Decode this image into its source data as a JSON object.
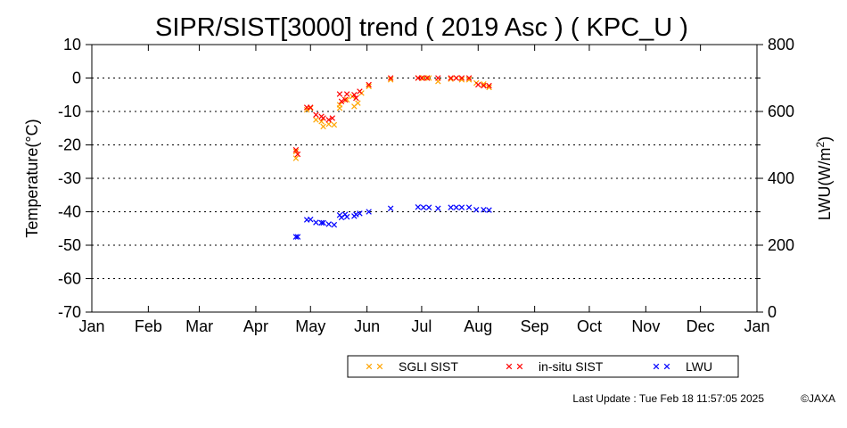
{
  "chart_data": {
    "type": "scatter",
    "title": "SIPR/SIST[3000] trend ( 2019 Asc ) ( KPC_U )",
    "ylabel_left": "Temperature(°C)",
    "ylabel_right_main": "LWU(W/m",
    "ylabel_right_sup": "2",
    "ylabel_right_end": ")",
    "ylim_left": [
      -70,
      10
    ],
    "ylim_right": [
      0,
      800
    ],
    "xlim": [
      1,
      366
    ],
    "yticks_left": [
      10,
      0,
      -10,
      -20,
      -30,
      -40,
      -50,
      -60,
      -70
    ],
    "yticks_right": [
      800,
      600,
      400,
      200,
      0
    ],
    "yticks_right_minor": [
      700,
      500,
      300,
      100
    ],
    "xticks": [
      {
        "label": "Jan",
        "day": 1
      },
      {
        "label": "Feb",
        "day": 32
      },
      {
        "label": "Mar",
        "day": 60
      },
      {
        "label": "Apr",
        "day": 91
      },
      {
        "label": "May",
        "day": 121
      },
      {
        "label": "Jun",
        "day": 152
      },
      {
        "label": "Jul",
        "day": 182
      },
      {
        "label": "Aug",
        "day": 213
      },
      {
        "label": "Sep",
        "day": 244
      },
      {
        "label": "Oct",
        "day": 274
      },
      {
        "label": "Nov",
        "day": 305
      },
      {
        "label": "Dec",
        "day": 335
      },
      {
        "label": "Jan",
        "day": 366
      }
    ],
    "grid": "dotted horizontal",
    "legend_position": "bottom",
    "series": [
      {
        "name": "SGLI SIST",
        "color": "#ffa500",
        "axis": "left",
        "points": [
          [
            113,
            -22.0
          ],
          [
            113,
            -24.0
          ],
          [
            119,
            -9.5
          ],
          [
            121,
            -9.0
          ],
          [
            124,
            -12.5
          ],
          [
            127,
            -13.0
          ],
          [
            128,
            -14.5
          ],
          [
            131,
            -13.8
          ],
          [
            134,
            -14.0
          ],
          [
            137,
            -8.0
          ],
          [
            137,
            -9.0
          ],
          [
            141,
            -6.5
          ],
          [
            144,
            -5.5
          ],
          [
            145,
            -8.5
          ],
          [
            147,
            -7.5
          ],
          [
            149,
            -4.5
          ],
          [
            153,
            -2.5
          ],
          [
            165,
            -0.5
          ],
          [
            180,
            0.0
          ],
          [
            183,
            0.0
          ],
          [
            186,
            0.0
          ],
          [
            191,
            -1.0
          ],
          [
            198,
            -0.3
          ],
          [
            201,
            0.0
          ],
          [
            204,
            -0.5
          ],
          [
            208,
            -0.5
          ],
          [
            212,
            -1.5
          ],
          [
            216,
            -1.8
          ],
          [
            219,
            -2.8
          ]
        ]
      },
      {
        "name": "in-situ SIST",
        "color": "#ff0000",
        "axis": "left",
        "points": [
          [
            113,
            -21.5
          ],
          [
            114,
            -22.8
          ],
          [
            119,
            -8.8
          ],
          [
            121,
            -8.8
          ],
          [
            124,
            -11.0
          ],
          [
            127,
            -11.5
          ],
          [
            128,
            -12.0
          ],
          [
            131,
            -12.5
          ],
          [
            133,
            -12.0
          ],
          [
            137,
            -4.8
          ],
          [
            138,
            -7.0
          ],
          [
            140,
            -6.5
          ],
          [
            141,
            -4.8
          ],
          [
            145,
            -5.0
          ],
          [
            146,
            -6.0
          ],
          [
            148,
            -4.0
          ],
          [
            153,
            -2.0
          ],
          [
            165,
            0.0
          ],
          [
            180,
            0.0
          ],
          [
            182,
            0.0
          ],
          [
            185,
            0.0
          ],
          [
            191,
            0.0
          ],
          [
            198,
            0.0
          ],
          [
            201,
            0.0
          ],
          [
            204,
            0.0
          ],
          [
            208,
            0.0
          ],
          [
            213,
            -2.0
          ],
          [
            216,
            -2.3
          ],
          [
            219,
            -2.3
          ]
        ]
      },
      {
        "name": "LWU",
        "color": "#0000ff",
        "axis": "right",
        "points": [
          [
            113,
            225
          ],
          [
            114,
            225
          ],
          [
            119,
            276
          ],
          [
            121,
            277
          ],
          [
            124,
            268
          ],
          [
            127,
            267
          ],
          [
            128,
            267
          ],
          [
            131,
            263
          ],
          [
            134,
            261
          ],
          [
            137,
            290
          ],
          [
            138,
            283
          ],
          [
            140,
            292
          ],
          [
            141,
            285
          ],
          [
            145,
            287
          ],
          [
            146,
            292
          ],
          [
            148,
            295
          ],
          [
            153,
            300
          ],
          [
            165,
            310
          ],
          [
            180,
            314
          ],
          [
            183,
            313
          ],
          [
            186,
            313
          ],
          [
            191,
            310
          ],
          [
            198,
            313
          ],
          [
            201,
            313
          ],
          [
            204,
            313
          ],
          [
            208,
            313
          ],
          [
            212,
            306
          ],
          [
            216,
            306
          ],
          [
            219,
            305
          ]
        ]
      }
    ]
  },
  "footer": {
    "last_update": "Last Update : Tue Feb 18 11:57:05 2025",
    "copyright": "©JAXA"
  }
}
